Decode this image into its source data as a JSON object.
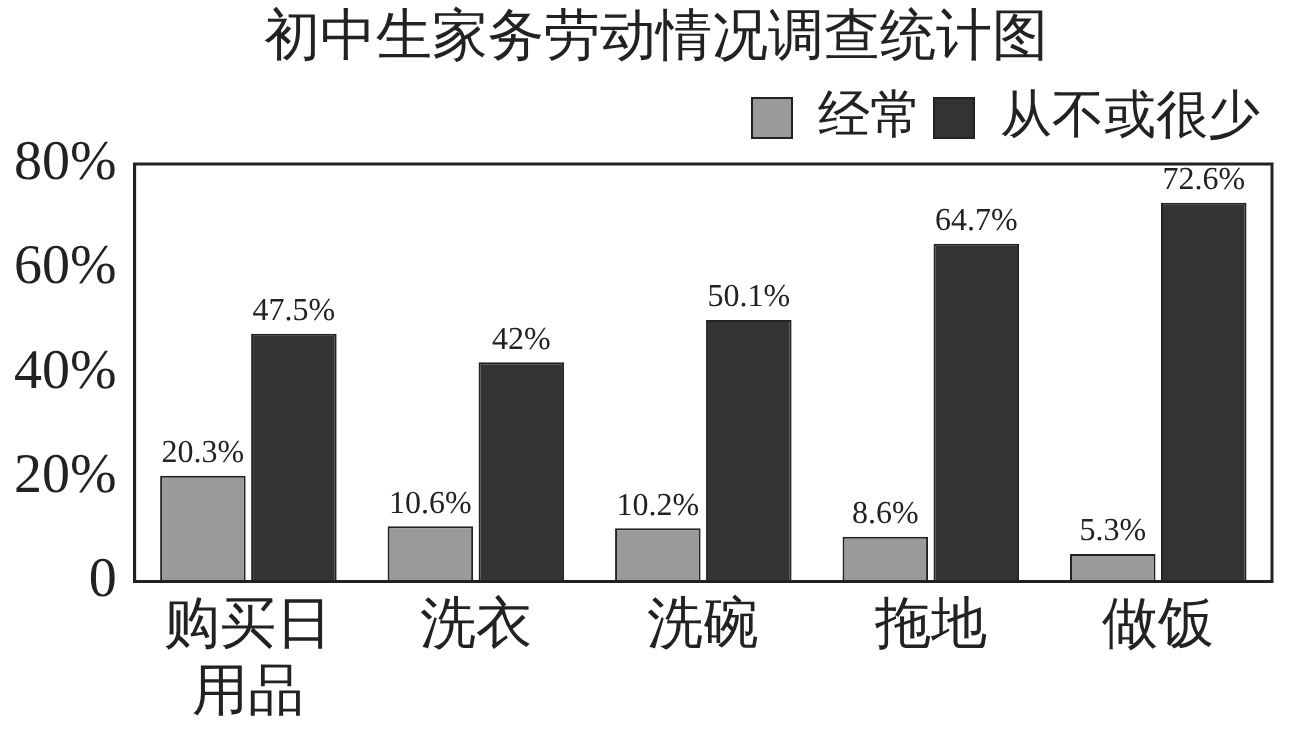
{
  "chart_data": {
    "type": "bar",
    "title": "初中生家务劳动情况调查统计图",
    "categories": [
      "购买日用品",
      "洗衣",
      "洗碗",
      "拖地",
      "做饭"
    ],
    "series": [
      {
        "name": "经常",
        "color": "#9a9a9a",
        "values": [
          20.3,
          10.6,
          10.2,
          8.6,
          5.3
        ],
        "value_labels": [
          "20.3%",
          "10.6%",
          "10.2%",
          "8.6%",
          "5.3%"
        ]
      },
      {
        "name": "从不或很少",
        "color": "#333333",
        "values": [
          47.5,
          42,
          50.1,
          64.7,
          72.6
        ],
        "value_labels": [
          "47.5%",
          "42%",
          "50.1%",
          "64.7%",
          "72.6%"
        ]
      }
    ],
    "ylim": [
      0,
      80
    ],
    "yticks": [
      {
        "value": 0,
        "label": "0"
      },
      {
        "value": 20,
        "label": "20%"
      },
      {
        "value": 40,
        "label": "40%"
      },
      {
        "value": 60,
        "label": "60%"
      },
      {
        "value": 80,
        "label": "80%"
      }
    ],
    "grid": false,
    "legend": "top right"
  }
}
